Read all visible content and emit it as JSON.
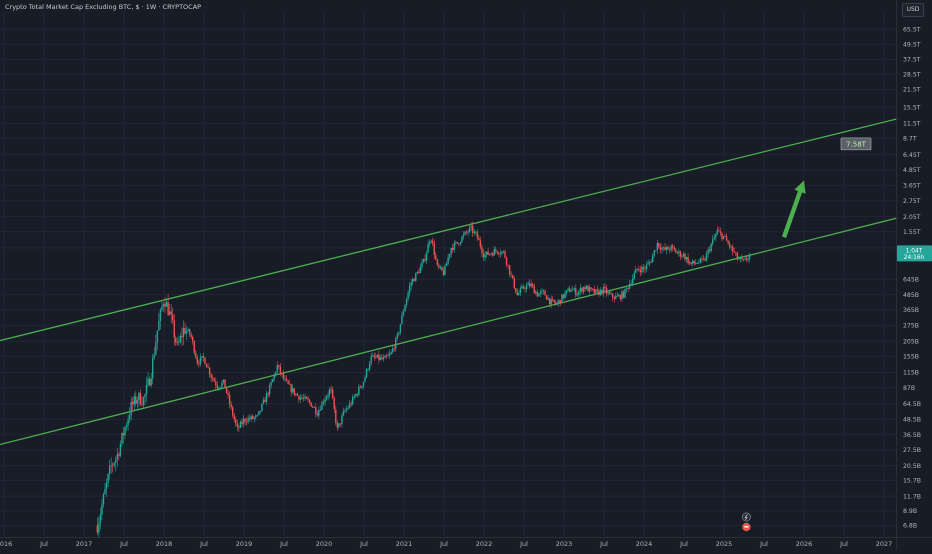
{
  "title": "Crypto Total Market Cap Excluding BTC, $ · 1W · CRYPTOCAP",
  "currency": "USD",
  "colors": {
    "background": "#181c27",
    "up": "#26a69a",
    "down": "#ef5350",
    "channel": "#4caf50",
    "arrow": "#4caf50",
    "axis_text": "#b2b5be"
  },
  "chart_data": {
    "type": "candlestick",
    "x_axis": {
      "tick_labels": [
        "2016",
        "Jul",
        "2017",
        "Jul",
        "2018",
        "Jul",
        "2019",
        "Jul",
        "2020",
        "Jul",
        "2021",
        "Jul",
        "2022",
        "Jul",
        "2023",
        "Jul",
        "2024",
        "Jul",
        "2025",
        "Jul",
        "2026",
        "Jul",
        "2027"
      ],
      "range": [
        "2016-01",
        "2027-03"
      ]
    },
    "y_axis": {
      "scale": "log",
      "position": "right",
      "tick_labels": [
        "65.5T",
        "49.5T",
        "37.5T",
        "28.5T",
        "21.5T",
        "15.5T",
        "11.5T",
        "8.7T",
        "6.45T",
        "4.85T",
        "3.65T",
        "2.75T",
        "2.05T",
        "1.55T",
        "1.15T",
        "645B",
        "485B",
        "365B",
        "275B",
        "205B",
        "155B",
        "115B",
        "87B",
        "64.5B",
        "48.5B",
        "36.5B",
        "27.5B",
        "20.5B",
        "15.7B",
        "11.7B",
        "8.9B",
        "6.8B"
      ]
    },
    "series": [
      {
        "keypoints": [
          [
            "2017-03",
            6.8
          ],
          [
            "2017-05",
            20
          ],
          [
            "2017-06",
            25
          ],
          [
            "2017-08",
            60
          ],
          [
            "2017-09",
            72
          ],
          [
            "2017-10",
            70
          ],
          [
            "2017-11",
            110
          ],
          [
            "2017-12",
            250
          ],
          [
            "2018-01",
            460
          ],
          [
            "2018-02",
            320
          ],
          [
            "2018-03",
            180
          ],
          [
            "2018-04",
            260
          ],
          [
            "2018-05",
            230
          ],
          [
            "2018-06",
            140
          ],
          [
            "2018-07",
            150
          ],
          [
            "2018-08",
            110
          ],
          [
            "2018-09",
            90
          ],
          [
            "2018-10",
            95
          ],
          [
            "2018-11",
            60
          ],
          [
            "2018-12",
            40
          ],
          [
            "2019-01",
            48
          ],
          [
            "2019-03",
            50
          ],
          [
            "2019-05",
            90
          ],
          [
            "2019-06",
            130
          ],
          [
            "2019-07",
            100
          ],
          [
            "2019-08",
            85
          ],
          [
            "2019-09",
            75
          ],
          [
            "2019-10",
            70
          ],
          [
            "2019-11",
            65
          ],
          [
            "2019-12",
            55
          ],
          [
            "2020-01",
            70
          ],
          [
            "2020-02",
            85
          ],
          [
            "2020-03",
            40
          ],
          [
            "2020-04",
            55
          ],
          [
            "2020-05",
            65
          ],
          [
            "2020-06",
            80
          ],
          [
            "2020-07",
            100
          ],
          [
            "2020-08",
            150
          ],
          [
            "2020-09",
            150
          ],
          [
            "2020-10",
            145
          ],
          [
            "2020-11",
            160
          ],
          [
            "2020-12",
            220
          ],
          [
            "2021-01",
            380
          ],
          [
            "2021-02",
            600
          ],
          [
            "2021-03",
            720
          ],
          [
            "2021-04",
            900
          ],
          [
            "2021-05",
            1450
          ],
          [
            "2021-06",
            800
          ],
          [
            "2021-07",
            720
          ],
          [
            "2021-08",
            1150
          ],
          [
            "2021-09",
            1250
          ],
          [
            "2021-10",
            1450
          ],
          [
            "2021-11",
            1650
          ],
          [
            "2021-12",
            1400
          ],
          [
            "2022-01",
            1000
          ],
          [
            "2022-02",
            1050
          ],
          [
            "2022-03",
            1100
          ],
          [
            "2022-04",
            1050
          ],
          [
            "2022-05",
            700
          ],
          [
            "2022-06",
            480
          ],
          [
            "2022-07",
            560
          ],
          [
            "2022-08",
            580
          ],
          [
            "2022-09",
            490
          ],
          [
            "2022-10",
            500
          ],
          [
            "2022-11",
            420
          ],
          [
            "2022-12",
            410
          ],
          [
            "2023-01",
            480
          ],
          [
            "2023-02",
            540
          ],
          [
            "2023-03",
            500
          ],
          [
            "2023-04",
            560
          ],
          [
            "2023-05",
            520
          ],
          [
            "2023-06",
            500
          ],
          [
            "2023-07",
            530
          ],
          [
            "2023-08",
            470
          ],
          [
            "2023-09",
            460
          ],
          [
            "2023-10",
            490
          ],
          [
            "2023-11",
            620
          ],
          [
            "2023-12",
            780
          ],
          [
            "2024-01",
            780
          ],
          [
            "2024-02",
            900
          ],
          [
            "2024-03",
            1250
          ],
          [
            "2024-04",
            1100
          ],
          [
            "2024-05",
            1150
          ],
          [
            "2024-06",
            1050
          ],
          [
            "2024-07",
            1000
          ],
          [
            "2024-08",
            850
          ],
          [
            "2024-09",
            880
          ],
          [
            "2024-10",
            900
          ],
          [
            "2024-11",
            1200
          ],
          [
            "2024-12",
            1550
          ],
          [
            "2025-01",
            1400
          ],
          [
            "2025-02",
            1150
          ],
          [
            "2025-03",
            950
          ],
          [
            "2025-04",
            880
          ],
          [
            "2025-05",
            1040
          ]
        ]
      }
    ],
    "price_labels": [
      {
        "text": "1.04T",
        "color": "#26a69a"
      },
      {
        "text": "24:16h",
        "color": "#26a69a"
      }
    ],
    "annotations": [
      {
        "type": "trendline",
        "role": "channel-top",
        "from": [
          "2015-12",
          205
        ],
        "to": [
          "2027-03",
          12500
        ]
      },
      {
        "type": "trendline",
        "role": "channel-bottom",
        "from": [
          "2015-12",
          30
        ],
        "to": [
          "2027-03",
          2000
        ]
      },
      {
        "type": "label",
        "text": "7.58T",
        "at": [
          "2026-07",
          7580
        ]
      },
      {
        "type": "arrow",
        "from": [
          "2025-10",
          1400
        ],
        "to": [
          "2026-01",
          4000
        ]
      }
    ]
  }
}
